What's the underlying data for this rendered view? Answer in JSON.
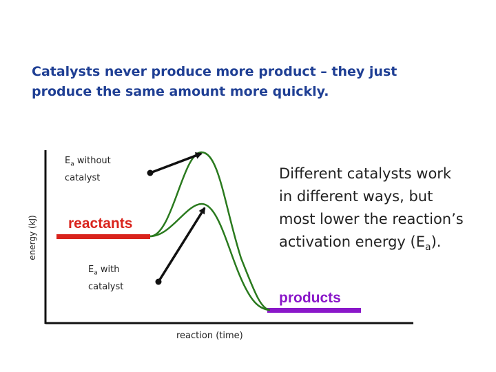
{
  "headline": {
    "line1": "Catalysts never produce more product – they just",
    "line2": "produce the same amount more quickly."
  },
  "side_note": {
    "line1": "Different catalysts work",
    "line2": "in different ways, but",
    "line3": "most lower the reaction’s",
    "line4_prefix": "activation energy (E",
    "line4_sub": "a",
    "line4_suffix": ")."
  },
  "label_without": {
    "main": "E",
    "sub": "a",
    "rest": " without",
    "line2": "catalyst"
  },
  "label_with": {
    "main": "E",
    "sub": "a",
    "rest": " with",
    "line2": "catalyst"
  },
  "reactants_label": "reactants",
  "products_label": "products",
  "x_axis_label": "reaction (time)",
  "y_axis_label": "energy (kJ)",
  "colors": {
    "curve": "#2a7a1e",
    "reactants": "#d9231c",
    "products": "#8a17c9",
    "arrow": "#111111",
    "axis": "#111111"
  }
}
